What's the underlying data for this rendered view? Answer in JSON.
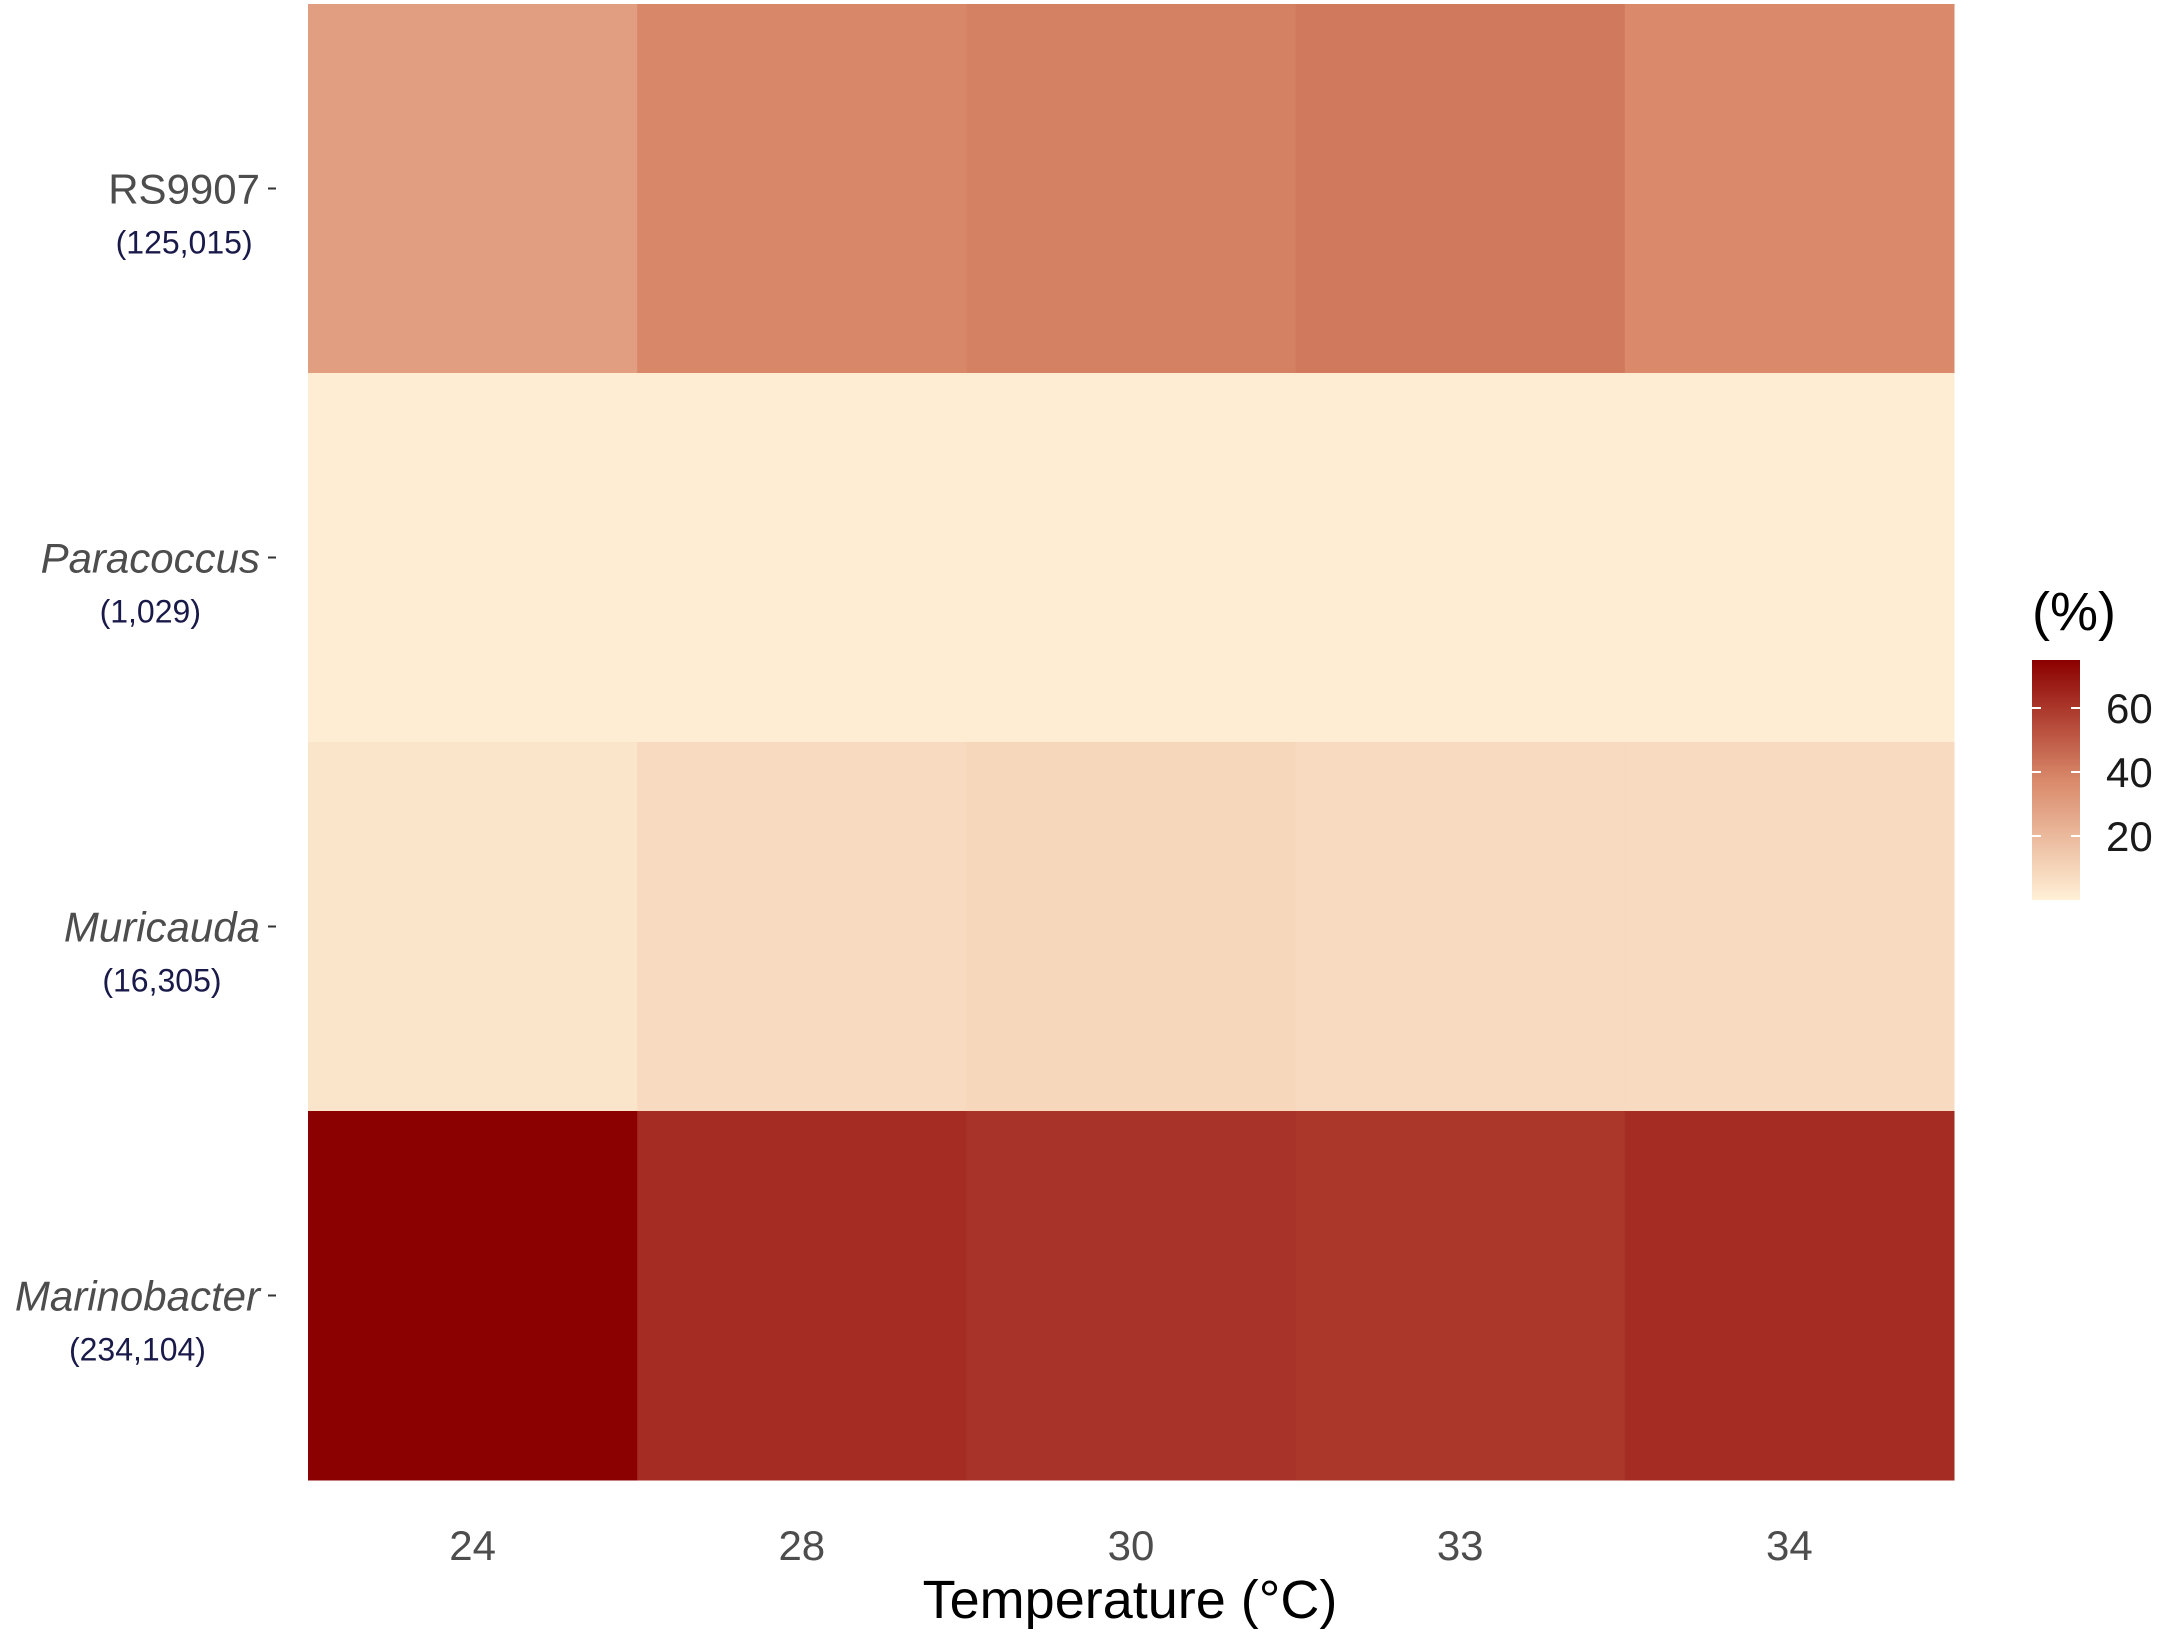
{
  "chart_data": {
    "type": "heatmap",
    "xlabel": "Temperature (°C)",
    "x_categories": [
      "24",
      "28",
      "30",
      "33",
      "34"
    ],
    "y_categories": [
      {
        "name": "RS9907",
        "count": "(125,015)",
        "italic": false
      },
      {
        "name": "Paracoccus",
        "count": "(1,029)",
        "italic": true
      },
      {
        "name": "Muricauda",
        "count": "(16,305)",
        "italic": true
      },
      {
        "name": "Marinobacter",
        "count": "(234,104)",
        "italic": true
      }
    ],
    "values": [
      [
        30,
        38,
        40,
        42,
        37
      ],
      [
        1,
        1,
        1,
        1,
        1
      ],
      [
        4,
        8,
        9,
        8,
        8
      ],
      [
        75,
        63,
        61,
        60,
        63
      ]
    ],
    "legend": {
      "title": "(%)",
      "ticks": [
        "20",
        "40",
        "60"
      ],
      "tick_values": [
        20,
        40,
        60
      ],
      "range": [
        0,
        75
      ],
      "low_color": "#fff0d6",
      "mid_color": "#d9896a",
      "high_color": "#8b0000",
      "placement": "right"
    },
    "grid": false
  }
}
